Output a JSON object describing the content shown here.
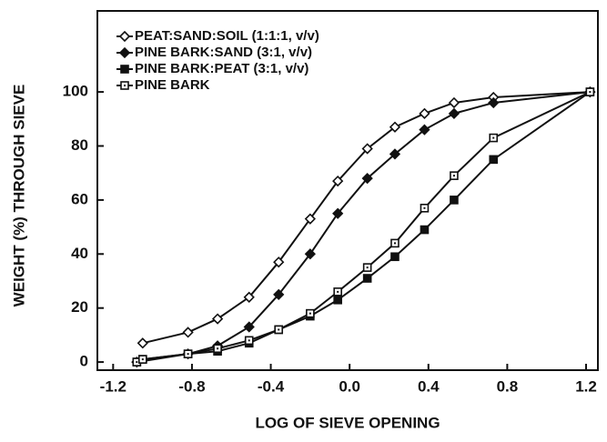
{
  "chart_data": {
    "type": "line",
    "x_label": "LOG OF SIEVE OPENING",
    "y_label": "WEIGHT (%) THROUGH SIEVE",
    "xlim": [
      -1.28,
      1.26
    ],
    "ylim": [
      -3,
      130
    ],
    "xticks": [
      -1.2,
      -0.8,
      -0.4,
      {
        "value": 0,
        "label": "0.0"
      },
      0.4,
      0.8,
      1.2
    ],
    "yticks": [
      0,
      20,
      40,
      60,
      80,
      100
    ],
    "legend": "upper left",
    "series": [
      {
        "name": "PEAT:SAND:SOIL (1:1:1, v/v)",
        "color": "#111",
        "marker": "diamond-open",
        "x": [
          -1.05,
          -0.82,
          -0.67,
          -0.51,
          -0.36,
          -0.2,
          -0.06,
          0.09,
          0.23,
          0.38,
          0.53,
          0.73,
          1.22
        ],
        "values": [
          7,
          11,
          16,
          24,
          37,
          53,
          67,
          79,
          87,
          92,
          96,
          98,
          100
        ]
      },
      {
        "name": "PINE BARK:SAND (3:1, v/v)",
        "color": "#111",
        "marker": "diamond-filled",
        "x": [
          -1.08,
          -0.82,
          -0.67,
          -0.51,
          -0.36,
          -0.2,
          -0.06,
          0.09,
          0.23,
          0.38,
          0.53,
          0.73,
          1.22
        ],
        "values": [
          0,
          3,
          6,
          13,
          25,
          40,
          55,
          68,
          77,
          86,
          92,
          96,
          100
        ]
      },
      {
        "name": "PINE BARK:PEAT (3:1, v/v)",
        "color": "#111",
        "marker": "square-filled",
        "x": [
          -1.08,
          -1.05,
          -0.82,
          -0.67,
          -0.51,
          -0.36,
          -0.2,
          -0.06,
          0.09,
          0.23,
          0.38,
          0.53,
          0.73,
          1.22
        ],
        "values": [
          0,
          1,
          3,
          4,
          7,
          12,
          17,
          23,
          31,
          39,
          49,
          60,
          75,
          100
        ]
      },
      {
        "name": "PINE BARK",
        "color": "#111",
        "marker": "square-open",
        "x": [
          -1.08,
          -1.05,
          -0.82,
          -0.67,
          -0.51,
          -0.36,
          -0.2,
          -0.06,
          0.09,
          0.23,
          0.38,
          0.53,
          0.73,
          1.22
        ],
        "values": [
          0,
          1,
          3,
          5,
          8,
          12,
          18,
          26,
          35,
          44,
          57,
          69,
          83,
          100
        ]
      }
    ]
  }
}
